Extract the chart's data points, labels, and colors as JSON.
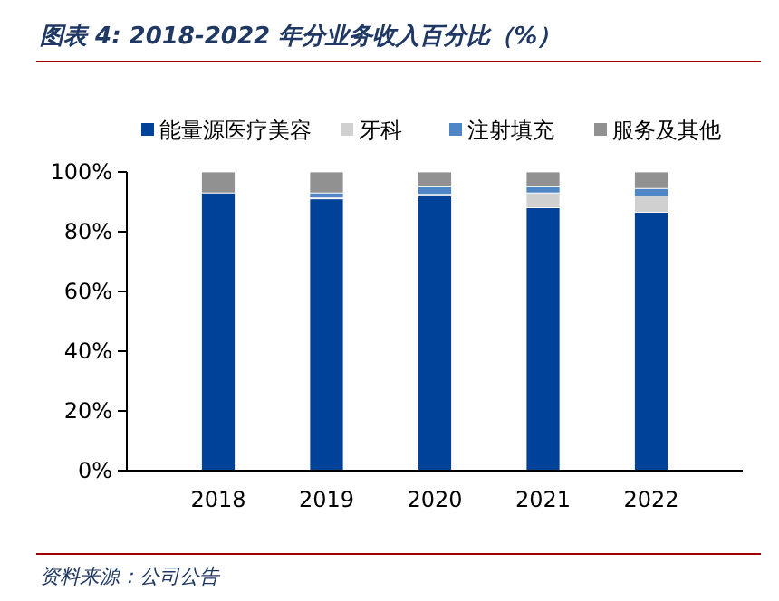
{
  "chart_data": {
    "type": "bar",
    "stacked": true,
    "title": "图表 4:  2018-2022 年分业务收入百分比（%）",
    "categories": [
      "2018",
      "2019",
      "2020",
      "2021",
      "2022"
    ],
    "series": [
      {
        "name": "能量源医疗美容",
        "color": "#00419a",
        "values": [
          93,
          91,
          92,
          88,
          86.5
        ]
      },
      {
        "name": "牙科",
        "color": "#d0d0d0",
        "values": [
          0,
          0.3,
          0.5,
          5,
          5.5
        ]
      },
      {
        "name": "注射填充",
        "color": "#4f86c6",
        "values": [
          0,
          1.7,
          2.5,
          2,
          2.5
        ]
      },
      {
        "name": "服务及其他",
        "color": "#919191",
        "values": [
          7,
          7,
          5,
          5,
          5.5
        ]
      }
    ],
    "ylim": [
      0,
      100
    ],
    "yticks": [
      {
        "value": 0,
        "label": "0%"
      },
      {
        "value": 20,
        "label": "20%"
      },
      {
        "value": 40,
        "label": "40%"
      },
      {
        "value": 60,
        "label": "60%"
      },
      {
        "value": 80,
        "label": "80%"
      },
      {
        "value": 100,
        "label": "100%"
      }
    ],
    "legend": "top",
    "grid": false,
    "annotations": [
      "资料来源：公司公告"
    ]
  }
}
